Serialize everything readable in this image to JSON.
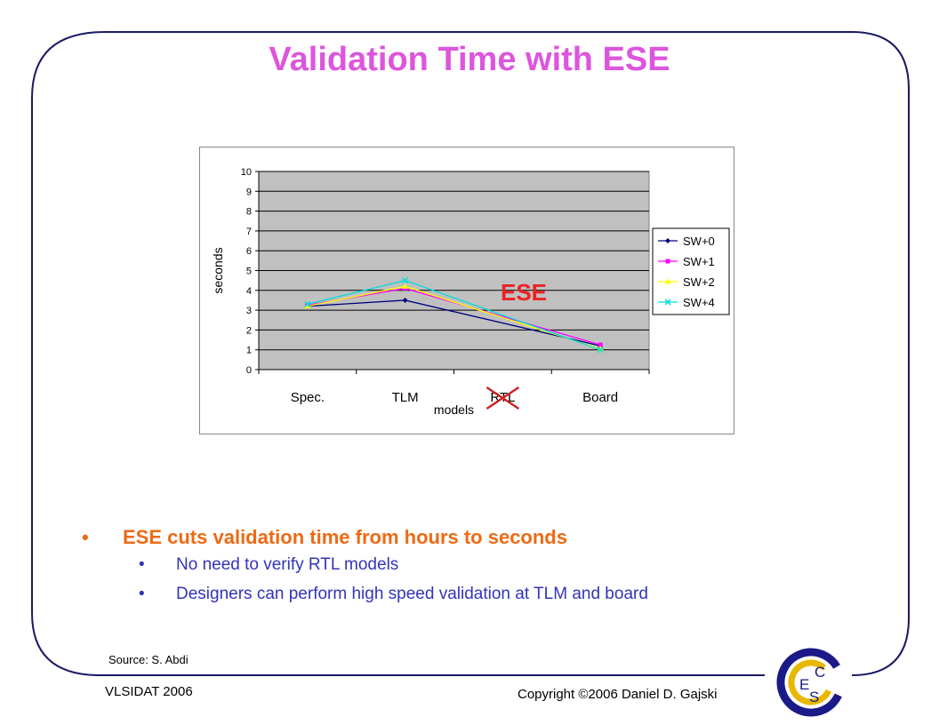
{
  "slide": {
    "title": "Validation Time with ESE",
    "bullets": [
      "ESE cuts validation time from hours to seconds"
    ],
    "sub_bullets": [
      "No need to verify RTL models",
      "Designers can perform high speed validation at TLM and board"
    ],
    "bullet_symbol": "•",
    "source": "Source: S. Abdi",
    "footer_left": "VLSIDAT 2006",
    "footer_right": "Copyright ©2006 Daniel D. Gajski",
    "logo_letters": [
      "C",
      "E",
      "S"
    ]
  },
  "colors": {
    "title": "#dd55dd",
    "main_bullet": "#ee6a14",
    "sub_bullet": "#3333bb",
    "frame": "#1a1a66",
    "plot_bg": "#c0c0c0",
    "ese_label": "#ee2222",
    "strike": "#cc2222"
  },
  "chart_data": {
    "type": "line",
    "categories": [
      "Spec.",
      "TLM",
      "RTL",
      "Board"
    ],
    "xlabel": "models",
    "ylabel": "seconds",
    "ylim": [
      0,
      10
    ],
    "yticks": [
      "0",
      "1",
      "2",
      "3",
      "4",
      "5",
      "6",
      "7",
      "8",
      "9",
      "10"
    ],
    "grid": true,
    "legend_position": "right",
    "annotation": "ESE",
    "struck_category": "RTL",
    "series": [
      {
        "name": "SW+0",
        "x": [
          0,
          1,
          3
        ],
        "values": [
          3.2,
          3.5,
          1.2
        ],
        "color": "#000080",
        "marker": "diamond"
      },
      {
        "name": "SW+1",
        "x": [
          0,
          1,
          3
        ],
        "values": [
          3.25,
          4.1,
          1.25
        ],
        "color": "#ff00ff",
        "marker": "square"
      },
      {
        "name": "SW+2",
        "x": [
          0,
          1,
          3
        ],
        "values": [
          3.2,
          4.2,
          1.05
        ],
        "color": "#ffff00",
        "marker": "triangle"
      },
      {
        "name": "SW+4",
        "x": [
          0,
          1,
          3
        ],
        "values": [
          3.3,
          4.5,
          1.0
        ],
        "color": "#00dddd",
        "marker": "x"
      }
    ]
  }
}
